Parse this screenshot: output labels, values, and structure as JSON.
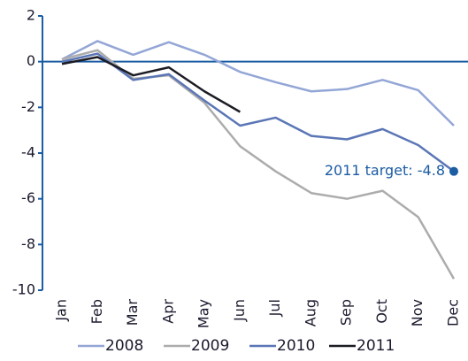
{
  "chart_data": {
    "type": "line",
    "categories": [
      "Jan",
      "Feb",
      "Mar",
      "Apr",
      "May",
      "Jun",
      "Jul",
      "Aug",
      "Sep",
      "Oct",
      "Nov",
      "Dec"
    ],
    "series": [
      {
        "name": "2008",
        "color": "#93a6d6",
        "values": [
          0.1,
          0.9,
          0.3,
          0.85,
          0.3,
          -0.45,
          -0.9,
          -1.3,
          -1.2,
          -0.8,
          -1.25,
          -2.8
        ]
      },
      {
        "name": "2009",
        "color": "#acacac",
        "values": [
          0.1,
          0.5,
          -0.75,
          -0.6,
          -1.8,
          -3.7,
          -4.8,
          -5.75,
          -6.0,
          -5.65,
          -6.8,
          -9.5
        ]
      },
      {
        "name": "2010",
        "color": "#5b76b6",
        "values": [
          0.0,
          0.35,
          -0.8,
          -0.55,
          -1.7,
          -2.8,
          -2.45,
          -3.25,
          -3.4,
          -2.95,
          -3.65,
          -4.8
        ]
      },
      {
        "name": "2011",
        "color": "#1c1c24",
        "values": [
          -0.1,
          0.2,
          -0.6,
          -0.25,
          -1.3,
          -2.2,
          null,
          null,
          null,
          null,
          null,
          null
        ]
      }
    ],
    "annotation": {
      "text": "2011 target: -4.8",
      "value": -4.8,
      "color": "#1b5ca3"
    },
    "axis_color": "#1b5ca3",
    "ylim": [
      -10,
      2
    ],
    "yticks": [
      2,
      0,
      -2,
      -4,
      -6,
      -8,
      -10
    ],
    "grid": false
  }
}
